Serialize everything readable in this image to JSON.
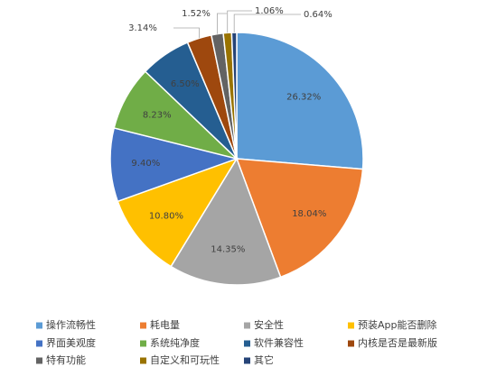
{
  "chart_data": {
    "type": "pie",
    "categories": [
      "操作流畅性",
      "耗电量",
      "安全性",
      "预装App能否删除",
      "界面美观度",
      "系统纯净度",
      "软件兼容性",
      "内核是否是最新版",
      "特有功能",
      "自定义和可玩性",
      "其它"
    ],
    "values": [
      26.32,
      18.04,
      14.35,
      10.8,
      9.4,
      8.23,
      6.5,
      3.14,
      1.52,
      1.06,
      0.64
    ],
    "value_labels": [
      "26.32%",
      "18.04%",
      "14.35%",
      "10.80%",
      "9.40%",
      "8.23%",
      "6.50%",
      "3.14%",
      "1.52%",
      "1.06%",
      "0.64%"
    ],
    "colors": [
      "#5b9bd5",
      "#ed7d31",
      "#a5a5a5",
      "#ffc000",
      "#4472c4",
      "#70ad47",
      "#255e91",
      "#9e480e",
      "#636363",
      "#997300",
      "#264478"
    ],
    "legend": "bottom"
  }
}
